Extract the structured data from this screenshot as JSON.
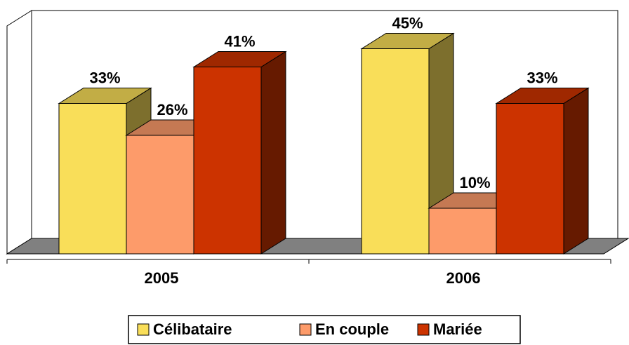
{
  "chart_data": {
    "type": "bar3d",
    "categories": [
      "2005",
      "2006"
    ],
    "series": [
      {
        "name": "Célibataire",
        "color": "#f9de59",
        "values": [
          33,
          45
        ],
        "value_labels": [
          "33%",
          "45%"
        ]
      },
      {
        "name": "En couple",
        "color": "#fd9b6a",
        "values": [
          26,
          10
        ],
        "value_labels": [
          "26%",
          "10%"
        ]
      },
      {
        "name": "Mariée",
        "color": "#cc3300",
        "values": [
          41,
          33
        ],
        "value_labels": [
          "41%",
          "33%"
        ]
      }
    ],
    "ylim": [
      0,
      50
    ]
  }
}
